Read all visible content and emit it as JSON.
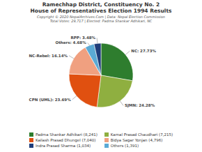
{
  "chart_data": {
    "type": "pie",
    "title": "Ramechhap District, Constituency No. 2",
    "subtitle": "House of Representatives Election 1994 Results",
    "annotations": [
      "Copyright © 2020 NepalArchives.Com | Data: Nepal Election Commission",
      "Total Votes: 29,717 | Elected: Padma Shankar Adhikari, NC"
    ],
    "categories": [
      "NC",
      "SJMN",
      "CPN (UML)",
      "NC-Rebel",
      "Others",
      "RPP"
    ],
    "values": [
      27.73,
      24.28,
      23.69,
      16.14,
      4.68,
      3.48
    ],
    "value_labels": [
      "NC: 27.73%",
      "SJMN: 24.28%",
      "CPN (UML): 23.69%",
      "NC-Rebel: 16.14%",
      "Others: 4.68%",
      "RPP: 3.48%"
    ],
    "colors": [
      "#2e7d2e",
      "#8faf40",
      "#e05010",
      "#f0a080",
      "#5baad5",
      "#1f3d7a"
    ],
    "data_labels": true,
    "legend": "bottom",
    "legend_entries": [
      {
        "label": "Padma Shankar Adhikari (8,241)",
        "color": "#2e7d2e"
      },
      {
        "label": "Kamal Prasad Chaudhari (7,215)",
        "color": "#8faf40"
      },
      {
        "label": "Kailash Prasad Dhungel (7,040)",
        "color": "#e05010"
      },
      {
        "label": "Bidya Sagar Yonjan (4,796)",
        "color": "#f0a080"
      },
      {
        "label": "Indra Prasad Sharma (1,034)",
        "color": "#1f3d7a"
      },
      {
        "label": "Others (1,391)",
        "color": "#5baad5"
      }
    ]
  }
}
